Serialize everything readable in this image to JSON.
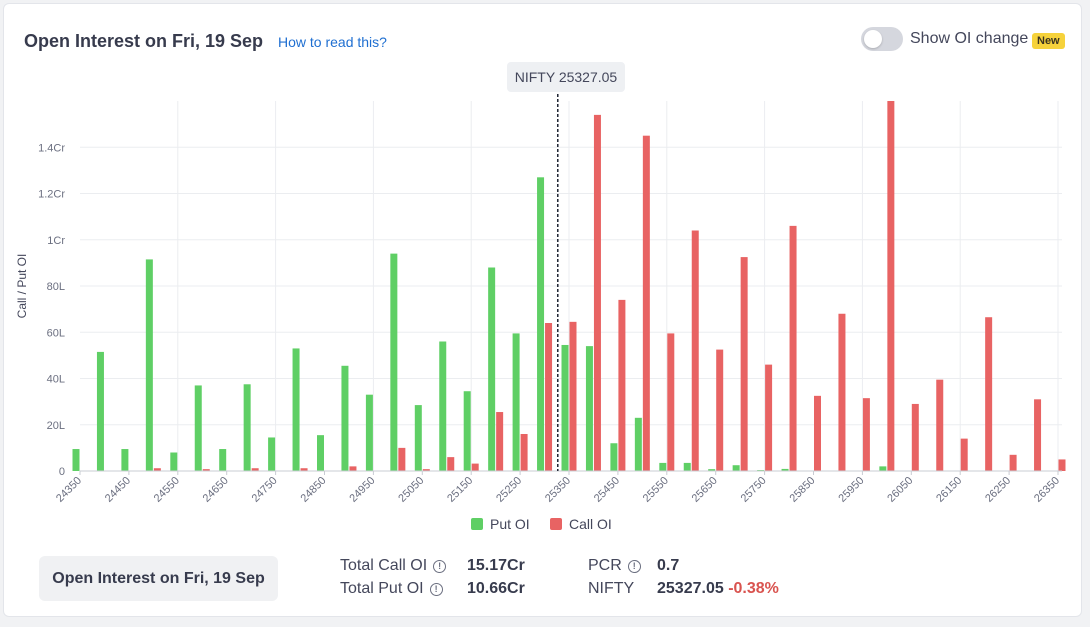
{
  "header": {
    "title": "Open Interest on Fri, 19 Sep",
    "help_link": "How to read this?",
    "toggle_label": "Show OI change",
    "new_badge": "New"
  },
  "spot": {
    "label": "NIFTY 25327.05",
    "value": 25327.05
  },
  "colors": {
    "put": "#5fcf65",
    "call": "#e86363",
    "spot_line": "#1d2230",
    "grid": "#ebedf0"
  },
  "chart_data": {
    "type": "bar",
    "ylabel": "Call / Put OI",
    "ylim": [
      0,
      16000000
    ],
    "yticks": [
      {
        "value": 0,
        "label": "0"
      },
      {
        "value": 2000000,
        "label": "20L"
      },
      {
        "value": 4000000,
        "label": "40L"
      },
      {
        "value": 6000000,
        "label": "60L"
      },
      {
        "value": 8000000,
        "label": "80L"
      },
      {
        "value": 10000000,
        "label": "1Cr"
      },
      {
        "value": 12000000,
        "label": "1.2Cr"
      },
      {
        "value": 14000000,
        "label": "1.4Cr"
      }
    ],
    "strikes": [
      24350,
      24400,
      24450,
      24500,
      24550,
      24600,
      24650,
      24700,
      24750,
      24800,
      24850,
      24900,
      24950,
      25000,
      25050,
      25100,
      25150,
      25200,
      25250,
      25300,
      25350,
      25400,
      25450,
      25500,
      25550,
      25600,
      25650,
      25700,
      25750,
      25800,
      25850,
      25900,
      25950,
      26000,
      26050,
      26100,
      26150,
      26200,
      26250,
      26300,
      26350
    ],
    "xtick_labels": [
      "24350",
      "24450",
      "24550",
      "24650",
      "24750",
      "24850",
      "24950",
      "25050",
      "25150",
      "25250",
      "25350",
      "25450",
      "25550",
      "25650",
      "25750",
      "25850",
      "25950",
      "26050",
      "26150",
      "26250",
      "26350"
    ],
    "series": [
      {
        "name": "Put OI",
        "values": [
          950000,
          5150000,
          950000,
          9150000,
          800000,
          3700000,
          950000,
          3750000,
          1450000,
          5300000,
          1550000,
          4550000,
          3300000,
          9400000,
          2850000,
          5600000,
          3450000,
          8800000,
          5950000,
          12700000,
          5450000,
          5400000,
          1200000,
          2300000,
          350000,
          350000,
          80000,
          250000,
          40000,
          90000,
          0,
          0,
          0,
          200000,
          0,
          0,
          0,
          0,
          0,
          0,
          0
        ]
      },
      {
        "name": "Call OI",
        "values": [
          0,
          0,
          0,
          120000,
          0,
          80000,
          0,
          120000,
          0,
          120000,
          0,
          200000,
          0,
          1000000,
          80000,
          600000,
          320000,
          2550000,
          1600000,
          6400000,
          6450000,
          15400000,
          7400000,
          14500000,
          5950000,
          10400000,
          5250000,
          9250000,
          4600000,
          10600000,
          3250000,
          6800000,
          3150000,
          16000000,
          2900000,
          3950000,
          1400000,
          6650000,
          700000,
          3100000,
          500000
        ]
      }
    ],
    "grid": true,
    "legend_position": "bottom-center"
  },
  "footer": {
    "button_label": "Open Interest on Fri, 19 Sep",
    "total_call_label": "Total Call OI",
    "total_call_value": "15.17Cr",
    "total_put_label": "Total Put OI",
    "total_put_value": "10.66Cr",
    "pcr_label": "PCR",
    "pcr_value": "0.7",
    "nifty_label": "NIFTY",
    "nifty_value": "25327.05",
    "nifty_change": "-0.38%"
  }
}
